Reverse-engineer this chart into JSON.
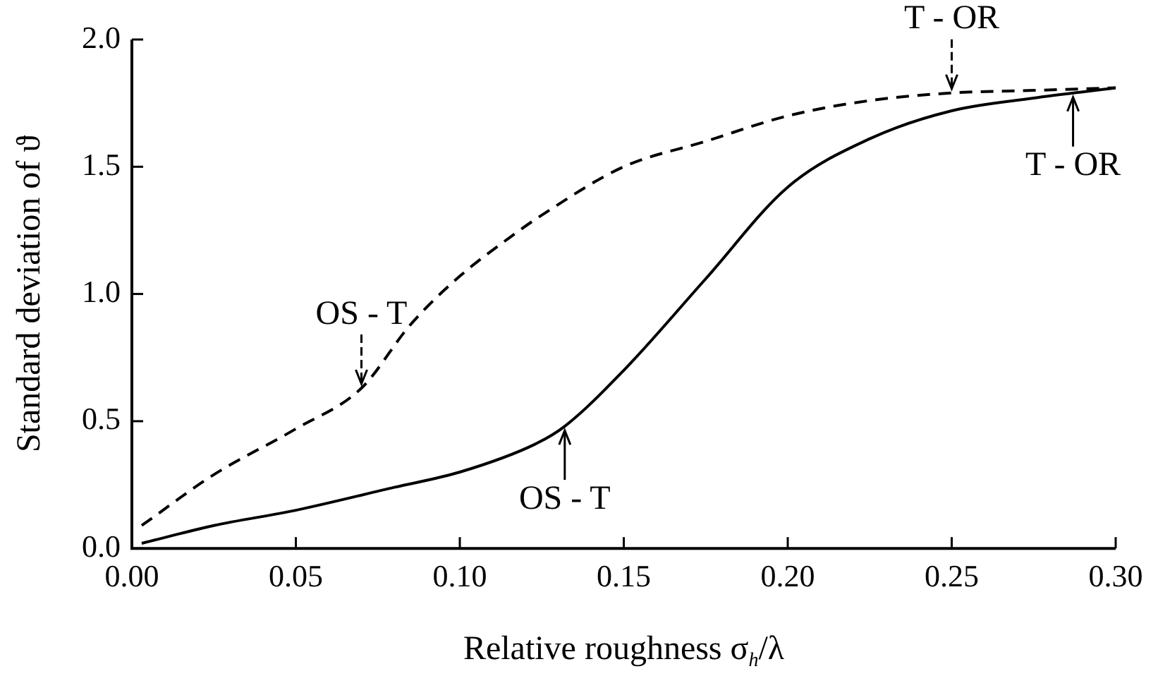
{
  "chart_data": {
    "type": "line",
    "xlabel": "Relative roughness σ$_{h}$/λ",
    "ylabel": "Standard deviation of ϑ",
    "xlim": [
      0,
      0.3
    ],
    "xticks": [
      {
        "value": 0,
        "label": "0.00"
      },
      0.05,
      {
        "value": 0.1,
        "label": "0.10"
      },
      0.15,
      {
        "value": 0.2,
        "label": "0.20"
      },
      0.25,
      {
        "value": 0.3,
        "label": "0.30"
      }
    ],
    "ylim": [
      0,
      2
    ],
    "yticks": [
      {
        "value": 0,
        "label": "0.0"
      },
      0.5,
      {
        "value": 1,
        "label": "1.0"
      },
      1.5,
      {
        "value": 2,
        "label": "2.0"
      }
    ],
    "grid": false,
    "legend": false,
    "marker": "none",
    "series": [
      {
        "color": "#000000",
        "line_style": "dashed",
        "x": [
          0.003,
          0.025,
          0.05,
          0.07,
          0.085,
          0.1,
          0.115,
          0.125,
          0.15,
          0.175,
          0.2,
          0.225,
          0.25,
          0.275,
          0.3
        ],
        "values": [
          0.09,
          0.29,
          0.47,
          0.63,
          0.88,
          1.07,
          1.22,
          1.31,
          1.5,
          1.6,
          1.7,
          1.76,
          1.79,
          1.8,
          1.81
        ]
      },
      {
        "color": "#000000",
        "line_style": "solid",
        "x": [
          0.003,
          0.025,
          0.05,
          0.08,
          0.1,
          0.123,
          0.132,
          0.15,
          0.175,
          0.2,
          0.225,
          0.25,
          0.275,
          0.3
        ],
        "values": [
          0.02,
          0.09,
          0.15,
          0.24,
          0.3,
          0.41,
          0.48,
          0.7,
          1.06,
          1.42,
          1.61,
          1.72,
          1.77,
          1.81
        ]
      }
    ],
    "annotations": [
      {
        "text": "OS - T",
        "x": 0.07,
        "y": 0.63
      },
      {
        "text": "OS - T",
        "x": 0.132,
        "y": 0.48
      },
      {
        "text": "T - OR",
        "x": 0.25,
        "y": 1.79
      },
      {
        "text": "T - OR",
        "x": 0.287,
        "y": 1.79
      }
    ]
  }
}
